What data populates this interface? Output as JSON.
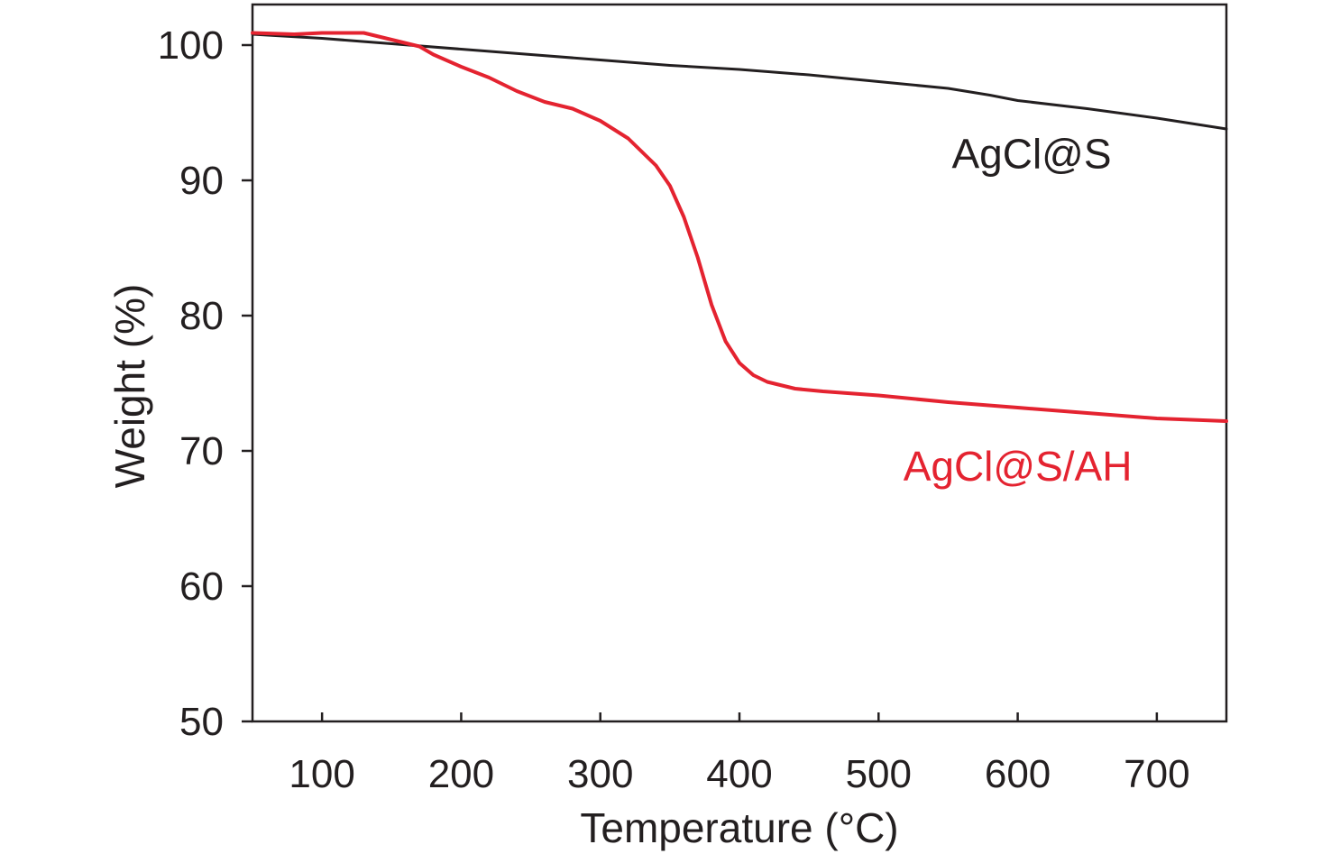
{
  "chart_data": {
    "type": "line",
    "title": "",
    "xlabel": "Temperature (°C)",
    "ylabel": "Weight (%)",
    "xlim": [
      50,
      750
    ],
    "ylim": [
      50,
      103
    ],
    "xticks": [
      100,
      200,
      300,
      400,
      500,
      600,
      700
    ],
    "yticks": [
      50,
      60,
      70,
      80,
      90,
      100
    ],
    "grid": false,
    "legend": "inline labels",
    "series": [
      {
        "name": "AgCl@S",
        "color": "#231f20",
        "x": [
          50,
          100,
          150,
          200,
          250,
          300,
          350,
          400,
          450,
          500,
          550,
          580,
          600,
          650,
          700,
          750
        ],
        "y": [
          100.8,
          100.5,
          100.1,
          99.7,
          99.3,
          98.9,
          98.5,
          98.2,
          97.8,
          97.3,
          96.8,
          96.3,
          95.9,
          95.3,
          94.6,
          93.8
        ]
      },
      {
        "name": "AgCl@S/AH",
        "color": "#e42330",
        "x": [
          50,
          80,
          100,
          130,
          150,
          170,
          180,
          200,
          220,
          240,
          260,
          280,
          300,
          320,
          340,
          350,
          360,
          370,
          380,
          390,
          400,
          410,
          420,
          440,
          460,
          500,
          550,
          600,
          650,
          700,
          750
        ],
        "y": [
          100.9,
          100.8,
          100.9,
          100.9,
          100.4,
          99.9,
          99.3,
          98.4,
          97.6,
          96.6,
          95.8,
          95.3,
          94.4,
          93.1,
          91.1,
          89.6,
          87.3,
          84.3,
          80.8,
          78.1,
          76.5,
          75.6,
          75.1,
          74.6,
          74.4,
          74.1,
          73.6,
          73.2,
          72.8,
          72.4,
          72.2
        ]
      }
    ],
    "annotations": [
      {
        "text": "AgCl@S",
        "color": "#231f20",
        "x": 610,
        "y": 90.9
      },
      {
        "text": "AgCl@S/AH",
        "color": "#e42330",
        "x": 600,
        "y": 67.8
      }
    ]
  }
}
